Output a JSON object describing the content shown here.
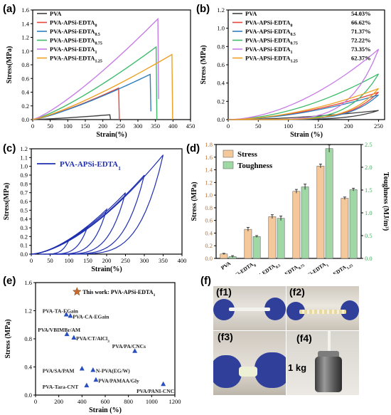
{
  "panels": {
    "a": "(a)",
    "b": "(b)",
    "c": "(c)",
    "d": "(d)",
    "e": "(e)",
    "f": "(f)"
  },
  "photos": {
    "f1": "(f1)",
    "f2": "(f2)",
    "f3": "(f3)",
    "f4": "(f4)",
    "weight_label": "1 kg"
  },
  "colors": {
    "PVA": "#404040",
    "E0": "#e8443a",
    "E05": "#2f7fbf",
    "E075": "#3dbb6a",
    "E1": "#c77be6",
    "E125": "#f0a020",
    "loop": "#1f2fb0",
    "stress_bar": "#f4c89a",
    "tough_bar": "#9fd8a4",
    "marker": "#2a4fbf",
    "star": "#c66b2d"
  },
  "chart_data": [
    {
      "id": "a",
      "type": "line",
      "xlabel": "Strain(%)",
      "ylabel": "Stress(MPa)",
      "xlim": [
        0,
        450
      ],
      "ylim": [
        0,
        1.6
      ],
      "xticks": [
        0,
        50,
        100,
        150,
        200,
        250,
        300,
        350,
        400,
        450
      ],
      "yticks": [
        0.0,
        0.2,
        0.4,
        0.6,
        0.8,
        1.0,
        1.2,
        1.4,
        1.6
      ],
      "legend": "top-left",
      "series": [
        {
          "name": "PVA",
          "color_key": "PVA",
          "x": [
            0,
            220,
            222
          ],
          "y": [
            0,
            0.07,
            0
          ]
        },
        {
          "name": "PVA-APSi-EDTA",
          "sub": "0",
          "color_key": "E0",
          "x": [
            0,
            245,
            247
          ],
          "y": [
            0,
            0.46,
            0
          ]
        },
        {
          "name": "PVA-APSi-EDTA",
          "sub": "0.5",
          "color_key": "E05",
          "x": [
            0,
            335,
            337
          ],
          "y": [
            0,
            0.66,
            0.12
          ]
        },
        {
          "name": "PVA-APSi-EDTA",
          "sub": "0.75",
          "color_key": "E075",
          "x": [
            0,
            352,
            354
          ],
          "y": [
            0,
            1.06,
            0
          ]
        },
        {
          "name": "PVA-APSi-EDTA",
          "sub": "1",
          "color_key": "E1",
          "x": [
            0,
            357,
            359
          ],
          "y": [
            0,
            1.47,
            0.3
          ]
        },
        {
          "name": "PVA-APSi-EDTA",
          "sub": "1.25",
          "color_key": "E125",
          "x": [
            0,
            397,
            399
          ],
          "y": [
            0,
            0.95,
            0
          ]
        }
      ]
    },
    {
      "id": "b",
      "type": "line",
      "xlabel": "Strain (%)",
      "ylabel": "Stress (MPa)",
      "xlim": [
        0,
        260
      ],
      "ylim": [
        0,
        1.2
      ],
      "xticks": [
        0,
        50,
        100,
        150,
        200,
        250
      ],
      "yticks": [
        0.0,
        0.2,
        0.4,
        0.6,
        0.8,
        1.0,
        1.2
      ],
      "legend": "top-left",
      "series": [
        {
          "name": "PVA",
          "sub": "",
          "pct": "54.03%",
          "color_key": "PVA",
          "peak": 0.1
        },
        {
          "name": "PVA-APSi-EDTA",
          "sub": "0",
          "pct": "66.62%",
          "color_key": "E0",
          "peak": 0.3
        },
        {
          "name": "PVA-APSi-EDTA",
          "sub": "0.5",
          "pct": "71.37%",
          "color_key": "E05",
          "peak": 0.27
        },
        {
          "name": "PVA-APSi-EDTA",
          "sub": "0.75",
          "pct": "72.22%",
          "color_key": "E075",
          "peak": 0.5
        },
        {
          "name": "PVA-APSi-EDTA",
          "sub": "1",
          "pct": "73.35%",
          "color_key": "E1",
          "peak": 0.77
        },
        {
          "name": "PVA-APSi-EDTA",
          "sub": "1.25",
          "pct": "62.37%",
          "color_key": "E125",
          "peak": 0.34
        }
      ],
      "loop_max_strain": 250
    },
    {
      "id": "c",
      "type": "line",
      "xlabel": "Strain(%)",
      "ylabel": "Stress(MPa)",
      "xlim": [
        0,
        400
      ],
      "ylim": [
        0,
        1.2
      ],
      "xticks": [
        0,
        50,
        100,
        150,
        200,
        250,
        300,
        350,
        400
      ],
      "yticks": [
        0.0,
        0.1,
        0.2,
        0.3,
        0.4,
        0.5,
        0.6,
        0.7,
        0.8,
        0.9,
        1.0,
        1.1,
        1.2
      ],
      "legend": "top-left",
      "series_name": "PVA-APSi-EDTA",
      "series_sub": "1",
      "loops": [
        {
          "strain": 100,
          "stress": 0.16
        },
        {
          "strain": 150,
          "stress": 0.32
        },
        {
          "strain": 200,
          "stress": 0.51
        },
        {
          "strain": 250,
          "stress": 0.7
        },
        {
          "strain": 300,
          "stress": 0.9
        },
        {
          "strain": 350,
          "stress": 1.13
        }
      ]
    },
    {
      "id": "d",
      "type": "bar",
      "ylabel": "Stress (MPa)",
      "y2label": "Toughness (MJ/m³)",
      "ylim": [
        0,
        1.8
      ],
      "y2lim": [
        0,
        2.5
      ],
      "yticks": [
        0.0,
        0.2,
        0.4,
        0.6,
        0.8,
        1.0,
        1.2,
        1.4,
        1.6,
        1.8
      ],
      "y2ticks": [
        0.0,
        0.5,
        1.0,
        1.5,
        2.0,
        2.5
      ],
      "legend": "top-left",
      "legend_labels": {
        "stress": "Stress",
        "tough": "Toughness"
      },
      "categories": [
        {
          "name": "PVA",
          "sub": ""
        },
        {
          "name": "PVA-APSi-EDTA",
          "sub": "0"
        },
        {
          "name": "PVA-APSi-EDTA",
          "sub": "0.5"
        },
        {
          "name": "PVA-APSi-EDTA",
          "sub": "0.75"
        },
        {
          "name": "PVA-APSi-EDTA",
          "sub": "1"
        },
        {
          "name": "PVA-APSi-EDTA",
          "sub": "1.25"
        }
      ],
      "stress": [
        0.07,
        0.46,
        0.66,
        1.06,
        1.46,
        0.95
      ],
      "stress_err": [
        0.01,
        0.03,
        0.03,
        0.03,
        0.03,
        0.02
      ],
      "toughness": [
        0.04,
        0.48,
        0.88,
        1.57,
        2.41,
        1.51
      ],
      "toughness_err": [
        0.02,
        0.02,
        0.05,
        0.06,
        0.08,
        0.03
      ]
    },
    {
      "id": "e",
      "type": "scatter",
      "xlabel": "Strain (%)",
      "ylabel": "Stress (MPa)",
      "xlim": [
        0,
        1200
      ],
      "ylim": [
        0,
        1.6
      ],
      "xticks": [
        0,
        200,
        400,
        600,
        800,
        1000,
        1200
      ],
      "yticks": [
        0.0,
        0.4,
        0.8,
        1.2,
        1.6
      ],
      "star": {
        "label": "This work: PVA-APSi-EDTA",
        "sub": "1",
        "x": 357,
        "y": 1.47
      },
      "points": [
        {
          "label": "PVA-TA-EGain",
          "x": 265,
          "y": 1.15,
          "lx": 60,
          "ly": 1.2
        },
        {
          "label": "PVA-CA-EGain",
          "x": 300,
          "y": 1.13,
          "lx": 320,
          "ly": 1.12
        },
        {
          "label": "PVA/VBIMBr/AM",
          "x": 270,
          "y": 0.87,
          "lx": 20,
          "ly": 0.93
        },
        {
          "label": "PVA/CT/AlCl",
          "sub": "3",
          "x": 330,
          "y": 0.82,
          "lx": 350,
          "ly": 0.81
        },
        {
          "label": "PVA/PA/CNCs",
          "x": 855,
          "y": 0.63,
          "lx": 660,
          "ly": 0.7
        },
        {
          "label": "PVA/SA/PAM",
          "x": 400,
          "y": 0.38,
          "lx": 60,
          "ly": 0.35
        },
        {
          "label": "N-PVA(EG/W)",
          "x": 495,
          "y": 0.36,
          "lx": 520,
          "ly": 0.35
        },
        {
          "label": "PVA/PAMAA/Gly",
          "x": 520,
          "y": 0.22,
          "lx": 540,
          "ly": 0.21
        },
        {
          "label": "PVA-Tara-CNT",
          "x": 440,
          "y": 0.14,
          "lx": 60,
          "ly": 0.12
        },
        {
          "label": "PVA/PANI-CNC",
          "x": 1100,
          "y": 0.16,
          "lx": 870,
          "ly": 0.06
        }
      ]
    }
  ]
}
